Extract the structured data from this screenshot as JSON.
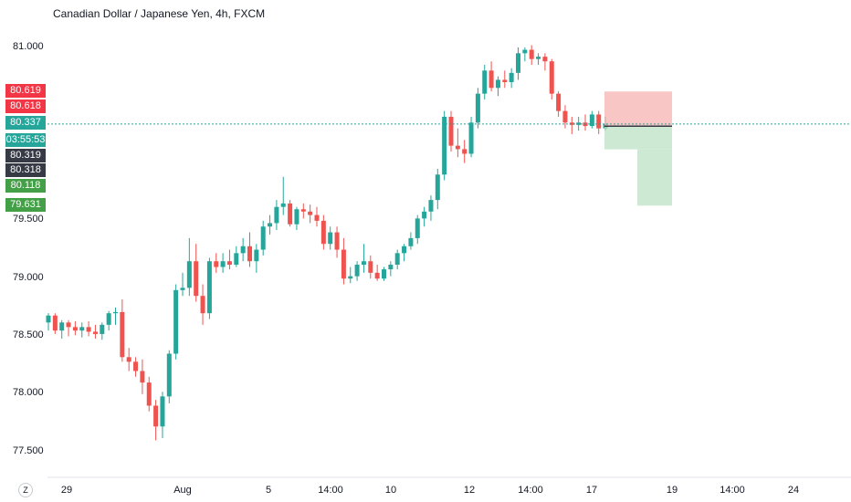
{
  "header": {
    "title": "Canadian Dollar / Japanese Yen, 4h, FXCM"
  },
  "colors": {
    "up": "#26a69a",
    "down": "#ef5350",
    "current": "#26a69a",
    "risk": "#f7b3b3",
    "reward": "#b9e0c0"
  },
  "price_axis": {
    "labels": [
      "81.000",
      "79.500",
      "79.000",
      "78.500",
      "78.000",
      "77.500"
    ]
  },
  "price_tags": {
    "stop": "80.619",
    "alert": "80.618",
    "current": "80.337",
    "countdown": "03:55:53",
    "entry_a": "80.319",
    "entry_b": "80.318",
    "tp1": "80.118",
    "tp2": "79.631"
  },
  "time_axis": {
    "labels": [
      "29",
      "Aug",
      "5",
      "14:00",
      "10",
      "12",
      "14:00",
      "17",
      "19",
      "14:00",
      "24"
    ]
  },
  "zoom_button": "Z",
  "chart_data": {
    "type": "candlestick",
    "title": "Canadian Dollar / Japanese Yen, 4h, FXCM",
    "ylim": [
      77.3,
      81.3
    ],
    "yticks": [
      81.0,
      79.5,
      79.0,
      78.5,
      78.0,
      77.5
    ],
    "grid": false,
    "ohlc": [
      [
        78.62,
        78.7,
        78.55,
        78.68
      ],
      [
        78.68,
        78.7,
        78.52,
        78.55
      ],
      [
        78.55,
        78.64,
        78.48,
        78.62
      ],
      [
        78.62,
        78.64,
        78.5,
        78.58
      ],
      [
        78.58,
        78.63,
        78.51,
        78.55
      ],
      [
        78.55,
        78.62,
        78.49,
        78.58
      ],
      [
        78.58,
        78.63,
        78.5,
        78.54
      ],
      [
        78.54,
        78.6,
        78.48,
        78.52
      ],
      [
        78.52,
        78.62,
        78.47,
        78.6
      ],
      [
        78.6,
        78.72,
        78.55,
        78.7
      ],
      [
        78.7,
        78.75,
        78.6,
        78.71
      ],
      [
        78.71,
        78.82,
        78.28,
        78.32
      ],
      [
        78.32,
        78.4,
        78.2,
        78.28
      ],
      [
        78.28,
        78.32,
        78.15,
        78.2
      ],
      [
        78.2,
        78.3,
        78.0,
        78.1
      ],
      [
        78.1,
        78.15,
        77.85,
        77.9
      ],
      [
        77.9,
        77.95,
        77.6,
        77.72
      ],
      [
        77.72,
        78.02,
        77.62,
        77.98
      ],
      [
        77.98,
        78.38,
        77.92,
        78.35
      ],
      [
        78.35,
        78.95,
        78.3,
        78.9
      ],
      [
        78.9,
        79.05,
        78.85,
        78.92
      ],
      [
        78.92,
        79.35,
        78.85,
        79.15
      ],
      [
        79.15,
        79.3,
        78.8,
        78.85
      ],
      [
        78.85,
        78.95,
        78.6,
        78.7
      ],
      [
        78.7,
        79.18,
        78.65,
        79.15
      ],
      [
        79.15,
        79.22,
        79.05,
        79.1
      ],
      [
        79.1,
        79.22,
        79.05,
        79.15
      ],
      [
        79.15,
        79.25,
        79.08,
        79.12
      ],
      [
        79.12,
        79.28,
        79.1,
        79.22
      ],
      [
        79.22,
        79.35,
        79.15,
        79.28
      ],
      [
        79.28,
        79.4,
        79.1,
        79.15
      ],
      [
        79.15,
        79.3,
        79.05,
        79.25
      ],
      [
        79.25,
        79.5,
        79.2,
        79.45
      ],
      [
        79.45,
        79.55,
        79.38,
        79.48
      ],
      [
        79.48,
        79.68,
        79.42,
        79.62
      ],
      [
        79.62,
        79.88,
        79.55,
        79.65
      ],
      [
        79.65,
        79.68,
        79.45,
        79.47
      ],
      [
        79.47,
        79.62,
        79.42,
        79.6
      ],
      [
        79.6,
        79.65,
        79.52,
        79.58
      ],
      [
        79.58,
        79.64,
        79.48,
        79.55
      ],
      [
        79.55,
        79.62,
        79.45,
        79.5
      ],
      [
        79.5,
        79.55,
        79.25,
        79.3
      ],
      [
        79.3,
        79.45,
        79.25,
        79.4
      ],
      [
        79.4,
        79.45,
        79.18,
        79.25
      ],
      [
        79.25,
        79.35,
        78.95,
        79.0
      ],
      [
        79.0,
        79.1,
        78.96,
        79.02
      ],
      [
        79.02,
        79.15,
        78.98,
        79.12
      ],
      [
        79.12,
        79.3,
        79.05,
        79.15
      ],
      [
        79.15,
        79.2,
        79.0,
        79.05
      ],
      [
        79.05,
        79.12,
        78.98,
        79.0
      ],
      [
        79.0,
        79.1,
        78.98,
        79.08
      ],
      [
        79.08,
        79.15,
        79.02,
        79.12
      ],
      [
        79.12,
        79.25,
        79.08,
        79.22
      ],
      [
        79.22,
        79.3,
        79.15,
        79.28
      ],
      [
        79.28,
        79.4,
        79.25,
        79.35
      ],
      [
        79.35,
        79.55,
        79.3,
        79.52
      ],
      [
        79.52,
        79.62,
        79.45,
        79.58
      ],
      [
        79.58,
        79.72,
        79.5,
        79.68
      ],
      [
        79.68,
        79.95,
        79.6,
        79.9
      ],
      [
        79.9,
        80.45,
        79.85,
        80.4
      ],
      [
        80.4,
        80.45,
        80.1,
        80.15
      ],
      [
        80.15,
        80.3,
        80.05,
        80.12
      ],
      [
        80.12,
        80.2,
        80.0,
        80.08
      ],
      [
        80.08,
        80.4,
        80.05,
        80.35
      ],
      [
        80.35,
        80.65,
        80.3,
        80.6
      ],
      [
        80.6,
        80.85,
        80.55,
        80.8
      ],
      [
        80.8,
        80.88,
        80.62,
        80.65
      ],
      [
        80.65,
        80.75,
        80.58,
        80.72
      ],
      [
        80.72,
        80.8,
        80.65,
        80.7
      ],
      [
        80.7,
        80.82,
        80.65,
        80.78
      ],
      [
        80.78,
        81.0,
        80.72,
        80.95
      ],
      [
        80.95,
        81.0,
        80.88,
        80.98
      ],
      [
        80.98,
        81.02,
        80.85,
        80.9
      ],
      [
        80.9,
        80.95,
        80.85,
        80.92
      ],
      [
        80.92,
        80.95,
        80.8,
        80.88
      ],
      [
        80.88,
        80.9,
        80.55,
        80.6
      ],
      [
        80.6,
        80.62,
        80.4,
        80.45
      ],
      [
        80.45,
        80.5,
        80.3,
        80.35
      ],
      [
        80.35,
        80.4,
        80.25,
        80.33
      ],
      [
        80.33,
        80.4,
        80.28,
        80.35
      ],
      [
        80.35,
        80.42,
        80.28,
        80.32
      ],
      [
        80.32,
        80.45,
        80.3,
        80.42
      ],
      [
        80.42,
        80.45,
        80.25,
        80.3
      ],
      [
        80.3,
        80.4,
        80.28,
        80.34
      ]
    ],
    "current_price": 80.337,
    "position": {
      "stop": 80.619,
      "entry": 80.319,
      "targets": [
        80.118,
        79.631
      ]
    }
  }
}
